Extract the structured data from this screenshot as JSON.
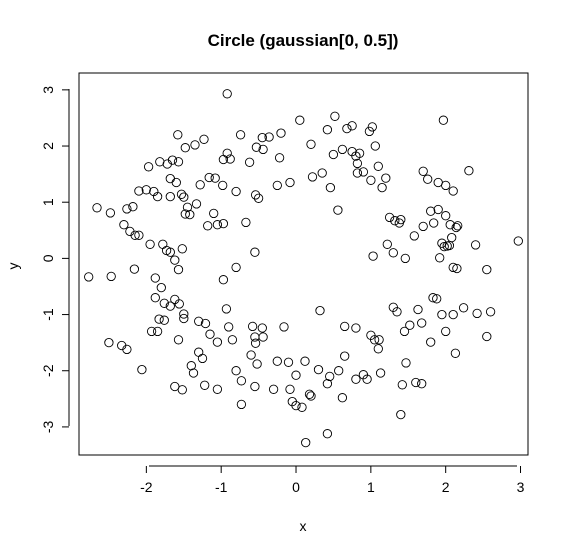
{
  "chart_data": {
    "type": "scatter",
    "title": "Circle (gaussian[0, 0.5])",
    "xlabel": "x",
    "ylabel": "y",
    "xlim": [
      -2.9,
      3.1
    ],
    "ylim": [
      -3.5,
      3.3
    ],
    "x_ticks": [
      -2,
      -1,
      0,
      1,
      2,
      3
    ],
    "y_ticks": [
      -3,
      -2,
      -1,
      0,
      1,
      2,
      3
    ],
    "x_tick_labels": [
      "-2",
      "-1",
      "0",
      "1",
      "2",
      "3"
    ],
    "y_tick_labels": [
      "-3",
      "-2",
      "-1",
      "0",
      "1",
      "2",
      "3"
    ],
    "grid": false,
    "marker": "open-circle",
    "series": [
      {
        "points": [
          [
            -0.92,
            2.93
          ],
          [
            0.05,
            2.46
          ],
          [
            0.52,
            2.53
          ],
          [
            0.68,
            2.31
          ],
          [
            0.75,
            2.36
          ],
          [
            1.02,
            2.34
          ],
          [
            1.97,
            2.46
          ],
          [
            -1.58,
            2.2
          ],
          [
            -1.23,
            2.12
          ],
          [
            -1.35,
            2.02
          ],
          [
            -0.74,
            2.2
          ],
          [
            -0.2,
            2.23
          ],
          [
            -0.36,
            2.16
          ],
          [
            -0.45,
            2.15
          ],
          [
            -0.53,
            1.98
          ],
          [
            -0.44,
            1.94
          ],
          [
            0.42,
            2.29
          ],
          [
            0.2,
            2.03
          ],
          [
            0.62,
            1.94
          ],
          [
            0.75,
            1.9
          ],
          [
            0.8,
            1.82
          ],
          [
            0.85,
            1.87
          ],
          [
            0.98,
            2.26
          ],
          [
            1.06,
            2.0
          ],
          [
            -1.48,
            1.97
          ],
          [
            -1.65,
            1.75
          ],
          [
            -1.72,
            1.68
          ],
          [
            -1.82,
            1.72
          ],
          [
            -1.57,
            1.72
          ],
          [
            -0.92,
            1.87
          ],
          [
            -0.88,
            1.77
          ],
          [
            -0.97,
            1.76
          ],
          [
            -0.62,
            1.71
          ],
          [
            -0.22,
            1.79
          ],
          [
            0.5,
            1.85
          ],
          [
            0.82,
            1.69
          ],
          [
            0.9,
            1.54
          ],
          [
            0.82,
            1.52
          ],
          [
            1.0,
            1.39
          ],
          [
            1.1,
            1.64
          ],
          [
            1.2,
            1.43
          ],
          [
            1.7,
            1.55
          ],
          [
            1.76,
            1.41
          ],
          [
            1.9,
            1.35
          ],
          [
            2.0,
            1.3
          ],
          [
            2.1,
            1.2
          ],
          [
            2.31,
            1.56
          ],
          [
            -1.97,
            1.63
          ],
          [
            -2.0,
            1.22
          ],
          [
            -1.9,
            1.19
          ],
          [
            -1.68,
            1.42
          ],
          [
            -1.6,
            1.35
          ],
          [
            -1.28,
            1.31
          ],
          [
            -1.16,
            1.44
          ],
          [
            -1.08,
            1.43
          ],
          [
            -0.98,
            1.3
          ],
          [
            -0.8,
            1.19
          ],
          [
            -0.54,
            1.13
          ],
          [
            -0.5,
            1.07
          ],
          [
            -0.25,
            1.3
          ],
          [
            -0.08,
            1.35
          ],
          [
            0.22,
            1.45
          ],
          [
            0.35,
            1.52
          ],
          [
            0.46,
            1.26
          ],
          [
            0.56,
            0.86
          ],
          [
            1.15,
            1.26
          ],
          [
            1.25,
            0.73
          ],
          [
            1.32,
            0.67
          ],
          [
            1.38,
            0.63
          ],
          [
            1.4,
            0.69
          ],
          [
            1.58,
            0.4
          ],
          [
            1.7,
            0.57
          ],
          [
            1.8,
            0.84
          ],
          [
            1.84,
            0.63
          ],
          [
            1.9,
            0.87
          ],
          [
            2.0,
            0.76
          ],
          [
            2.06,
            0.6
          ],
          [
            2.14,
            0.55
          ],
          [
            2.16,
            0.58
          ],
          [
            -2.66,
            0.9
          ],
          [
            -2.48,
            0.81
          ],
          [
            -2.26,
            0.88
          ],
          [
            -2.18,
            0.92
          ],
          [
            -2.1,
            1.2
          ],
          [
            -1.85,
            1.1
          ],
          [
            -1.68,
            1.1
          ],
          [
            -1.53,
            1.14
          ],
          [
            -1.5,
            1.09
          ],
          [
            -1.45,
            0.91
          ],
          [
            -1.48,
            0.79
          ],
          [
            -1.42,
            0.78
          ],
          [
            -1.33,
            0.97
          ],
          [
            -1.1,
            0.8
          ],
          [
            -1.05,
            0.6
          ],
          [
            -1.18,
            0.58
          ],
          [
            -0.97,
            0.62
          ],
          [
            -0.67,
            0.64
          ],
          [
            -2.3,
            0.6
          ],
          [
            -2.22,
            0.48
          ],
          [
            -2.15,
            0.41
          ],
          [
            -2.1,
            0.41
          ],
          [
            -1.95,
            0.25
          ],
          [
            -1.78,
            0.25
          ],
          [
            -1.73,
            0.14
          ],
          [
            -1.68,
            0.11
          ],
          [
            -1.62,
            -0.03
          ],
          [
            -1.57,
            -0.2
          ],
          [
            -1.52,
            0.17
          ],
          [
            -0.8,
            -0.16
          ],
          [
            -0.97,
            -0.38
          ],
          [
            -0.55,
            0.11
          ],
          [
            1.03,
            0.04
          ],
          [
            1.22,
            0.25
          ],
          [
            1.3,
            0.1
          ],
          [
            1.46,
            0.0
          ],
          [
            1.95,
            0.27
          ],
          [
            1.98,
            0.21
          ],
          [
            2.02,
            0.22
          ],
          [
            2.05,
            0.23
          ],
          [
            2.08,
            0.37
          ],
          [
            1.92,
            0.01
          ],
          [
            2.1,
            -0.16
          ],
          [
            2.15,
            -0.18
          ],
          [
            2.4,
            0.24
          ],
          [
            2.97,
            0.31
          ],
          [
            -2.77,
            -0.33
          ],
          [
            -2.47,
            -0.32
          ],
          [
            -2.16,
            -0.19
          ],
          [
            -1.88,
            -0.35
          ],
          [
            -1.8,
            -0.52
          ],
          [
            -1.76,
            -0.8
          ],
          [
            -1.62,
            -0.73
          ],
          [
            -1.56,
            -0.81
          ],
          [
            -1.68,
            -0.85
          ],
          [
            -1.88,
            -0.7
          ],
          [
            -1.85,
            -1.3
          ],
          [
            -1.76,
            -1.1
          ],
          [
            -1.83,
            -1.08
          ],
          [
            -1.93,
            -1.3
          ],
          [
            -1.5,
            -0.99
          ],
          [
            -1.5,
            -1.07
          ],
          [
            -1.3,
            -1.12
          ],
          [
            -1.21,
            -1.16
          ],
          [
            -1.15,
            -1.35
          ],
          [
            -1.05,
            -1.49
          ],
          [
            -0.93,
            -0.9
          ],
          [
            -0.9,
            -1.22
          ],
          [
            -0.58,
            -1.21
          ],
          [
            -0.55,
            -1.4
          ],
          [
            -0.54,
            -1.51
          ],
          [
            -0.44,
            -1.4
          ],
          [
            -0.45,
            -1.24
          ],
          [
            -0.16,
            -1.22
          ],
          [
            0.32,
            -0.93
          ],
          [
            0.65,
            -1.21
          ],
          [
            0.8,
            -1.24
          ],
          [
            1.0,
            -1.37
          ],
          [
            1.05,
            -1.45
          ],
          [
            1.11,
            -1.45
          ],
          [
            1.3,
            -0.87
          ],
          [
            1.35,
            -0.95
          ],
          [
            1.45,
            -1.3
          ],
          [
            1.52,
            -1.19
          ],
          [
            1.63,
            -0.91
          ],
          [
            1.68,
            -1.15
          ],
          [
            1.83,
            -0.7
          ],
          [
            1.88,
            -0.72
          ],
          [
            2.1,
            -1.0
          ],
          [
            1.95,
            -1.0
          ],
          [
            2.0,
            -1.3
          ],
          [
            2.24,
            -0.88
          ],
          [
            2.42,
            -0.98
          ],
          [
            2.55,
            -0.2
          ],
          [
            2.6,
            -0.95
          ],
          [
            2.55,
            -1.39
          ],
          [
            -2.5,
            -1.5
          ],
          [
            -2.26,
            -1.62
          ],
          [
            -2.33,
            -1.55
          ],
          [
            -2.06,
            -1.98
          ],
          [
            -1.57,
            -1.45
          ],
          [
            -1.3,
            -1.67
          ],
          [
            -1.4,
            -1.91
          ],
          [
            -1.25,
            -1.78
          ],
          [
            -0.85,
            -1.45
          ],
          [
            -0.6,
            -1.72
          ],
          [
            -0.52,
            -1.88
          ],
          [
            -0.25,
            -1.83
          ],
          [
            -0.1,
            -1.85
          ],
          [
            0.12,
            -1.83
          ],
          [
            0.3,
            -1.98
          ],
          [
            0.45,
            -2.1
          ],
          [
            0.57,
            -2.0
          ],
          [
            0.65,
            -1.74
          ],
          [
            0.8,
            -2.15
          ],
          [
            0.9,
            -2.07
          ],
          [
            1.1,
            -1.61
          ],
          [
            1.13,
            -2.04
          ],
          [
            1.47,
            -1.86
          ],
          [
            1.8,
            -1.49
          ],
          [
            2.13,
            -1.69
          ],
          [
            -1.62,
            -2.28
          ],
          [
            -1.52,
            -2.34
          ],
          [
            -1.37,
            -2.04
          ],
          [
            -1.22,
            -2.26
          ],
          [
            -1.05,
            -2.33
          ],
          [
            -0.8,
            -2.0
          ],
          [
            -0.73,
            -2.18
          ],
          [
            -0.73,
            -2.6
          ],
          [
            -0.55,
            -2.28
          ],
          [
            -0.3,
            -2.33
          ],
          [
            -0.08,
            -2.33
          ],
          [
            0.0,
            -2.08
          ],
          [
            -0.05,
            -2.55
          ],
          [
            0.0,
            -2.62
          ],
          [
            0.08,
            -2.65
          ],
          [
            0.18,
            -2.42
          ],
          [
            0.2,
            -2.45
          ],
          [
            0.42,
            -2.23
          ],
          [
            0.62,
            -2.48
          ],
          [
            0.95,
            -2.15
          ],
          [
            1.42,
            -2.25
          ],
          [
            1.68,
            -2.23
          ],
          [
            1.6,
            -2.21
          ],
          [
            1.4,
            -2.78
          ],
          [
            0.42,
            -3.12
          ],
          [
            0.13,
            -3.28
          ]
        ]
      }
    ]
  }
}
